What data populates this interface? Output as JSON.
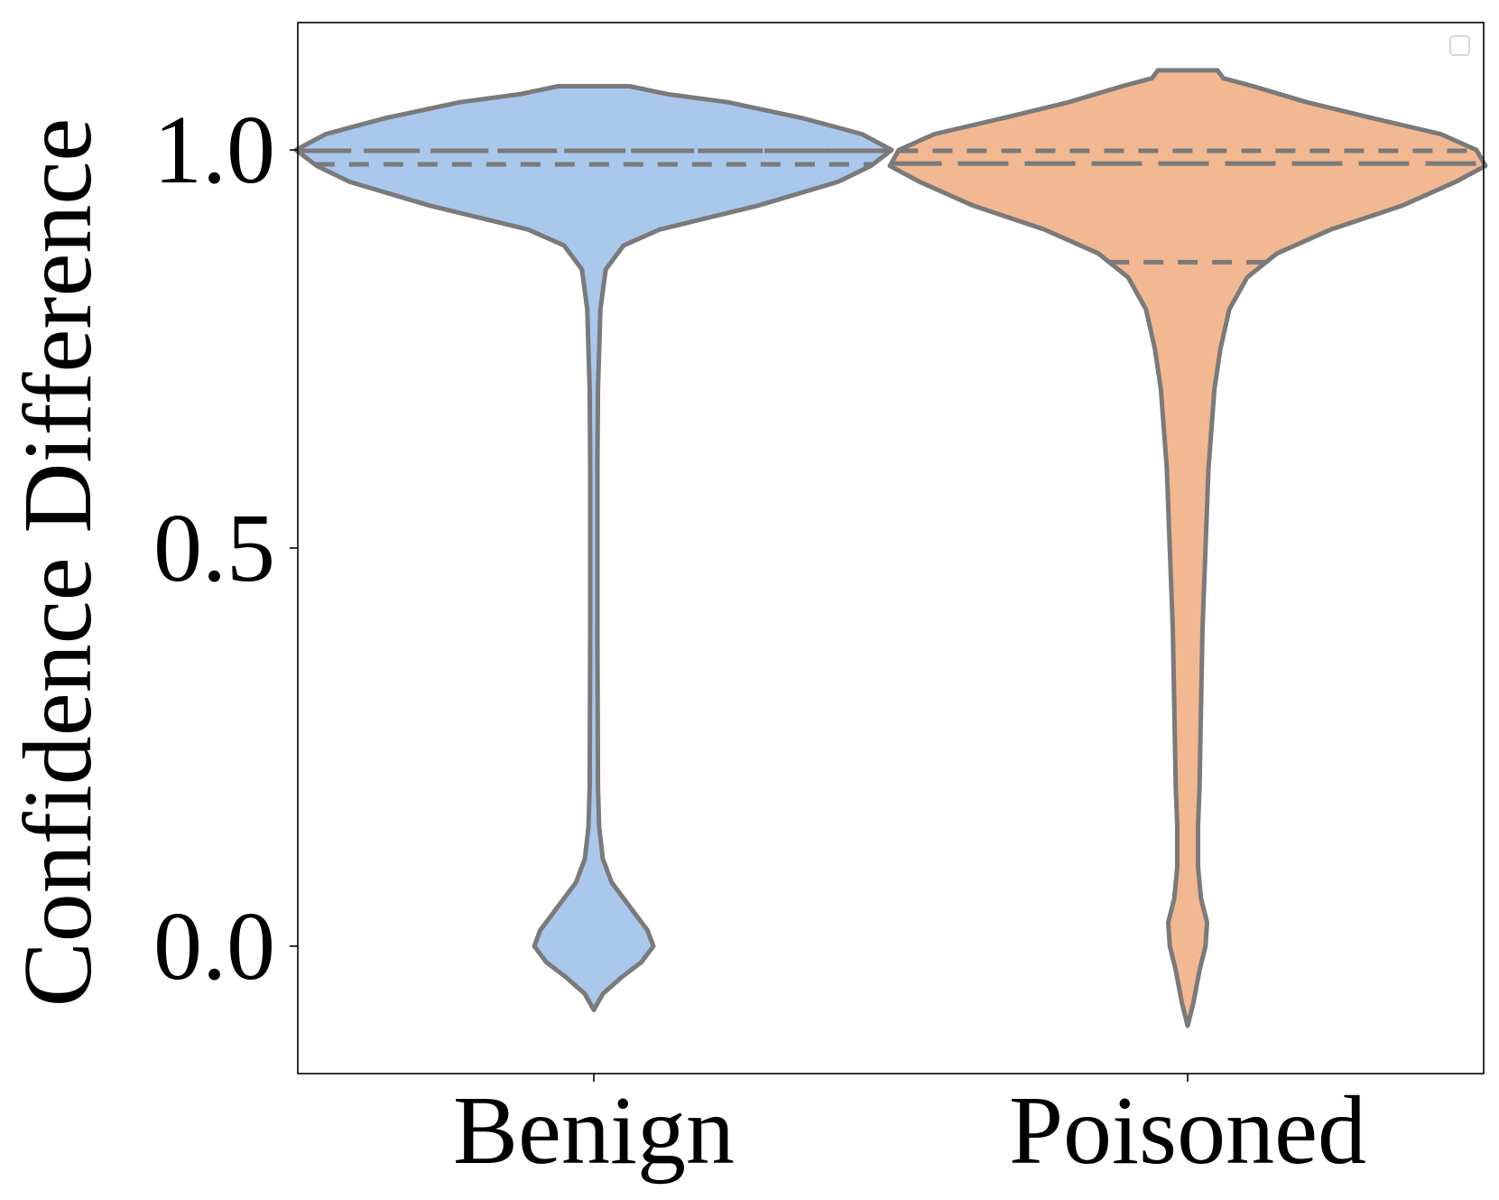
{
  "chart_data": {
    "type": "violin",
    "title": "",
    "xlabel": "",
    "ylabel": "Confidence Difference",
    "ylim": [
      -0.16,
      1.16
    ],
    "yticks": [
      0.0,
      0.5,
      1.0
    ],
    "ytick_labels": [
      "0.0",
      "0.5",
      "1.0"
    ],
    "categories": [
      "Benign",
      "Poisoned"
    ],
    "grid": false,
    "legend": {
      "placement": "top-right",
      "entries": []
    },
    "series": [
      {
        "category": "Benign",
        "color": "#a9c8ec",
        "min": -0.08,
        "max": 1.08,
        "quartiles": {
          "q1": 0.982,
          "median": 0.999,
          "q3": 0.999
        },
        "density": [
          [
            -0.08,
            0.0
          ],
          [
            -0.06,
            0.03
          ],
          [
            -0.04,
            0.09
          ],
          [
            -0.02,
            0.16
          ],
          [
            0.0,
            0.2
          ],
          [
            0.02,
            0.18
          ],
          [
            0.05,
            0.12
          ],
          [
            0.08,
            0.06
          ],
          [
            0.11,
            0.03
          ],
          [
            0.15,
            0.018
          ],
          [
            0.2,
            0.014
          ],
          [
            0.4,
            0.012
          ],
          [
            0.6,
            0.012
          ],
          [
            0.7,
            0.014
          ],
          [
            0.8,
            0.022
          ],
          [
            0.85,
            0.04
          ],
          [
            0.88,
            0.1
          ],
          [
            0.9,
            0.22
          ],
          [
            0.93,
            0.55
          ],
          [
            0.96,
            0.82
          ],
          [
            0.98,
            0.93
          ],
          [
            1.0,
            1.0
          ],
          [
            1.02,
            0.9
          ],
          [
            1.04,
            0.7
          ],
          [
            1.06,
            0.45
          ],
          [
            1.07,
            0.25
          ],
          [
            1.08,
            0.12
          ]
        ]
      },
      {
        "category": "Poisoned",
        "color": "#f2b891",
        "min": -0.1,
        "max": 1.1,
        "quartiles": {
          "q1": 0.859,
          "median": 0.983,
          "q3": 0.999
        },
        "density": [
          [
            -0.1,
            0.0
          ],
          [
            -0.07,
            0.02
          ],
          [
            -0.03,
            0.04
          ],
          [
            0.0,
            0.06
          ],
          [
            0.03,
            0.065
          ],
          [
            0.06,
            0.045
          ],
          [
            0.1,
            0.035
          ],
          [
            0.15,
            0.035
          ],
          [
            0.2,
            0.04
          ],
          [
            0.3,
            0.045
          ],
          [
            0.4,
            0.05
          ],
          [
            0.5,
            0.06
          ],
          [
            0.6,
            0.07
          ],
          [
            0.7,
            0.09
          ],
          [
            0.75,
            0.11
          ],
          [
            0.8,
            0.14
          ],
          [
            0.84,
            0.2
          ],
          [
            0.87,
            0.3
          ],
          [
            0.9,
            0.48
          ],
          [
            0.93,
            0.72
          ],
          [
            0.96,
            0.9
          ],
          [
            0.98,
            1.0
          ],
          [
            1.0,
            0.97
          ],
          [
            1.02,
            0.85
          ],
          [
            1.04,
            0.62
          ],
          [
            1.06,
            0.4
          ],
          [
            1.08,
            0.22
          ],
          [
            1.09,
            0.12
          ],
          [
            1.1,
            0.1
          ]
        ]
      }
    ]
  }
}
